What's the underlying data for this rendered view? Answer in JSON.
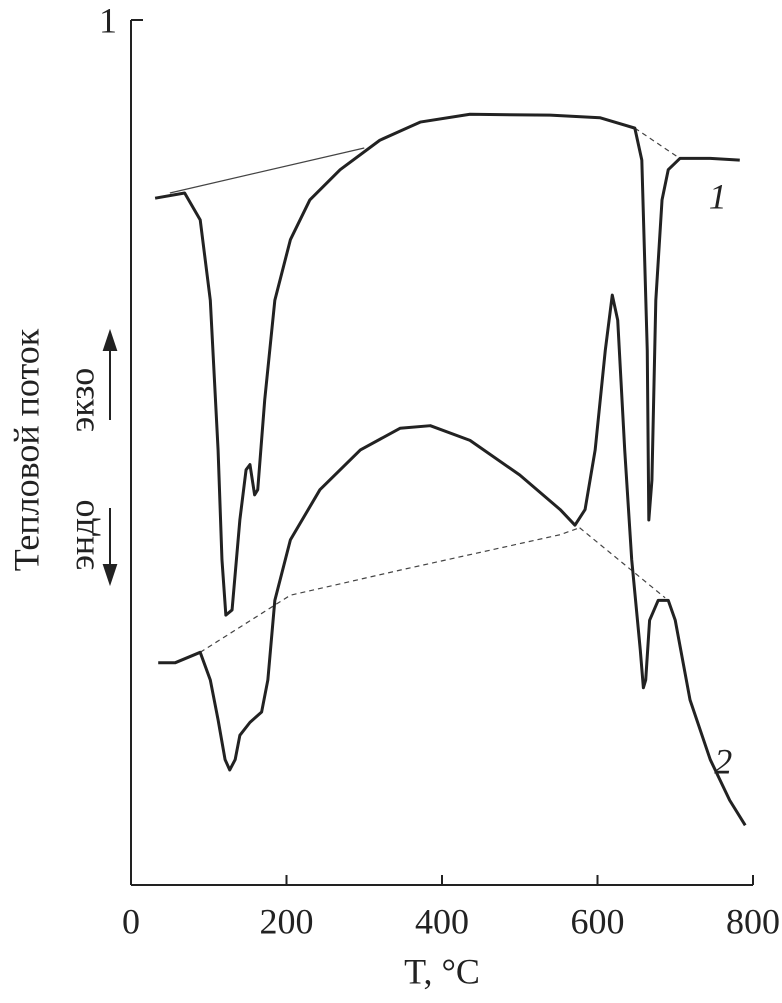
{
  "chart_data": {
    "type": "line",
    "ylabel": "Тепловой поток",
    "xlabel": "T, °C",
    "annotations": {
      "up": "экзо",
      "down": "эндо"
    },
    "xlim": [
      0,
      800
    ],
    "xticks": [
      0,
      200,
      400,
      600,
      800
    ],
    "ylim": [
      0,
      1
    ],
    "yticks": [
      1
    ],
    "series": [
      {
        "name": "1",
        "color": "#222",
        "x": [
          31,
          69,
          89,
          102,
          112,
          117,
          122,
          130,
          140,
          148,
          153,
          159,
          163,
          172,
          185,
          205,
          230,
          269,
          320,
          372,
          436,
          539,
          603,
          648,
          657,
          664,
          666,
          670,
          675,
          683,
          691,
          706,
          745,
          783
        ],
        "values": [
          0.794,
          0.8,
          0.769,
          0.676,
          0.503,
          0.376,
          0.312,
          0.318,
          0.422,
          0.48,
          0.486,
          0.451,
          0.457,
          0.561,
          0.676,
          0.746,
          0.792,
          0.827,
          0.861,
          0.882,
          0.891,
          0.89,
          0.887,
          0.875,
          0.838,
          0.618,
          0.422,
          0.468,
          0.676,
          0.792,
          0.827,
          0.84,
          0.84,
          0.838
        ]
      },
      {
        "name": "2",
        "color": "#222",
        "x": [
          35,
          57,
          89,
          102,
          112,
          121,
          127,
          134,
          140,
          153,
          168,
          176,
          185,
          205,
          243,
          295,
          346,
          385,
          436,
          500,
          552,
          571,
          584,
          597,
          610,
          619,
          626,
          635,
          644,
          655,
          659,
          662,
          667,
          678,
          691,
          700,
          719,
          745,
          770,
          790
        ],
        "values": [
          0.257,
          0.257,
          0.269,
          0.237,
          0.191,
          0.145,
          0.133,
          0.145,
          0.173,
          0.188,
          0.2,
          0.237,
          0.329,
          0.399,
          0.457,
          0.503,
          0.528,
          0.531,
          0.514,
          0.474,
          0.434,
          0.416,
          0.434,
          0.503,
          0.618,
          0.682,
          0.653,
          0.503,
          0.376,
          0.272,
          0.228,
          0.237,
          0.306,
          0.329,
          0.329,
          0.306,
          0.214,
          0.145,
          0.098,
          0.069
        ]
      }
    ],
    "baselines": [
      {
        "style": "solid",
        "x": [
          50,
          300
        ],
        "values": [
          0.8,
          0.852
        ]
      },
      {
        "style": "dashed",
        "x": [
          648,
          706
        ],
        "values": [
          0.875,
          0.84
        ]
      },
      {
        "style": "dashed",
        "x": [
          89,
          205,
          346,
          552,
          577
        ],
        "values": [
          0.269,
          0.335,
          0.364,
          0.405,
          0.413
        ]
      },
      {
        "style": "dashed",
        "x": [
          577,
          687
        ],
        "values": [
          0.413,
          0.332
        ]
      }
    ]
  }
}
